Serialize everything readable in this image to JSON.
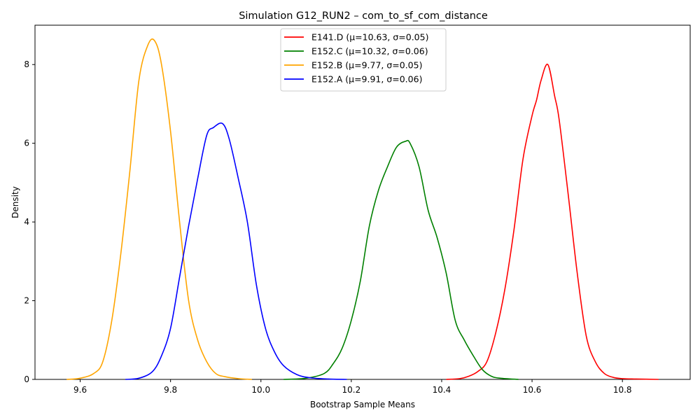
{
  "chart_data": {
    "type": "line",
    "title": "Simulation G12_RUN2 – com_to_sf_com_distance",
    "xlabel": "Bootstrap Sample Means",
    "ylabel": "Density",
    "xlim": [
      9.5,
      10.95
    ],
    "ylim": [
      0,
      9
    ],
    "xticks": [
      9.6,
      9.8,
      10.0,
      10.2,
      10.4,
      10.6,
      10.8
    ],
    "xtick_labels": [
      "9.6",
      "9.8",
      "10.0",
      "10.2",
      "10.4",
      "10.6",
      "10.8"
    ],
    "yticks": [
      0,
      2,
      4,
      6,
      8
    ],
    "ytick_labels": [
      "0",
      "2",
      "4",
      "6",
      "8"
    ],
    "grid": false,
    "legend_position": "top-center",
    "series": [
      {
        "name": "E141.D (μ=10.63, σ=0.05)",
        "color": "#ff0000",
        "x": [
          10.41,
          10.44,
          10.46,
          10.48,
          10.5,
          10.52,
          10.54,
          10.56,
          10.58,
          10.6,
          10.61,
          10.62,
          10.635,
          10.65,
          10.66,
          10.68,
          10.7,
          10.72,
          10.74,
          10.76,
          10.78,
          10.8,
          10.83,
          10.88
        ],
        "y": [
          0.0,
          0.02,
          0.08,
          0.2,
          0.45,
          1.2,
          2.3,
          3.8,
          5.6,
          6.7,
          7.1,
          7.6,
          8.0,
          7.2,
          6.6,
          4.7,
          2.7,
          1.1,
          0.45,
          0.15,
          0.05,
          0.02,
          0.01,
          0.0
        ]
      },
      {
        "name": "E152.C (μ=10.32, σ=0.06)",
        "color": "#008000",
        "x": [
          10.05,
          10.1,
          10.14,
          10.16,
          10.18,
          10.2,
          10.22,
          10.24,
          10.26,
          10.28,
          10.3,
          10.32,
          10.33,
          10.35,
          10.37,
          10.39,
          10.41,
          10.43,
          10.45,
          10.47,
          10.49,
          10.51,
          10.53,
          10.57
        ],
        "y": [
          0.0,
          0.03,
          0.15,
          0.4,
          0.8,
          1.5,
          2.5,
          3.9,
          4.8,
          5.4,
          5.9,
          6.05,
          6.0,
          5.4,
          4.3,
          3.6,
          2.7,
          1.5,
          1.0,
          0.6,
          0.25,
          0.08,
          0.03,
          0.0
        ]
      },
      {
        "name": "E152.B (μ=9.77, σ=0.05)",
        "color": "#ffa500",
        "x": [
          9.57,
          9.6,
          9.63,
          9.65,
          9.67,
          9.69,
          9.71,
          9.73,
          9.75,
          9.765,
          9.78,
          9.8,
          9.82,
          9.84,
          9.86,
          9.88,
          9.9,
          9.92,
          9.95,
          9.98
        ],
        "y": [
          0.0,
          0.03,
          0.15,
          0.45,
          1.5,
          3.2,
          5.3,
          7.6,
          8.5,
          8.6,
          8.0,
          6.3,
          4.0,
          2.0,
          1.0,
          0.45,
          0.15,
          0.07,
          0.02,
          0.0
        ]
      },
      {
        "name": "E152.A (μ=9.91, σ=0.06)",
        "color": "#0000ff",
        "x": [
          9.7,
          9.73,
          9.76,
          9.78,
          9.8,
          9.82,
          9.84,
          9.86,
          9.88,
          9.895,
          9.915,
          9.93,
          9.95,
          9.97,
          9.99,
          10.01,
          10.03,
          10.05,
          10.08,
          10.11,
          10.15,
          10.19
        ],
        "y": [
          0.0,
          0.03,
          0.2,
          0.6,
          1.3,
          2.6,
          3.9,
          5.1,
          6.2,
          6.4,
          6.5,
          6.1,
          5.1,
          4.0,
          2.4,
          1.3,
          0.7,
          0.35,
          0.12,
          0.04,
          0.01,
          0.0
        ]
      }
    ]
  }
}
